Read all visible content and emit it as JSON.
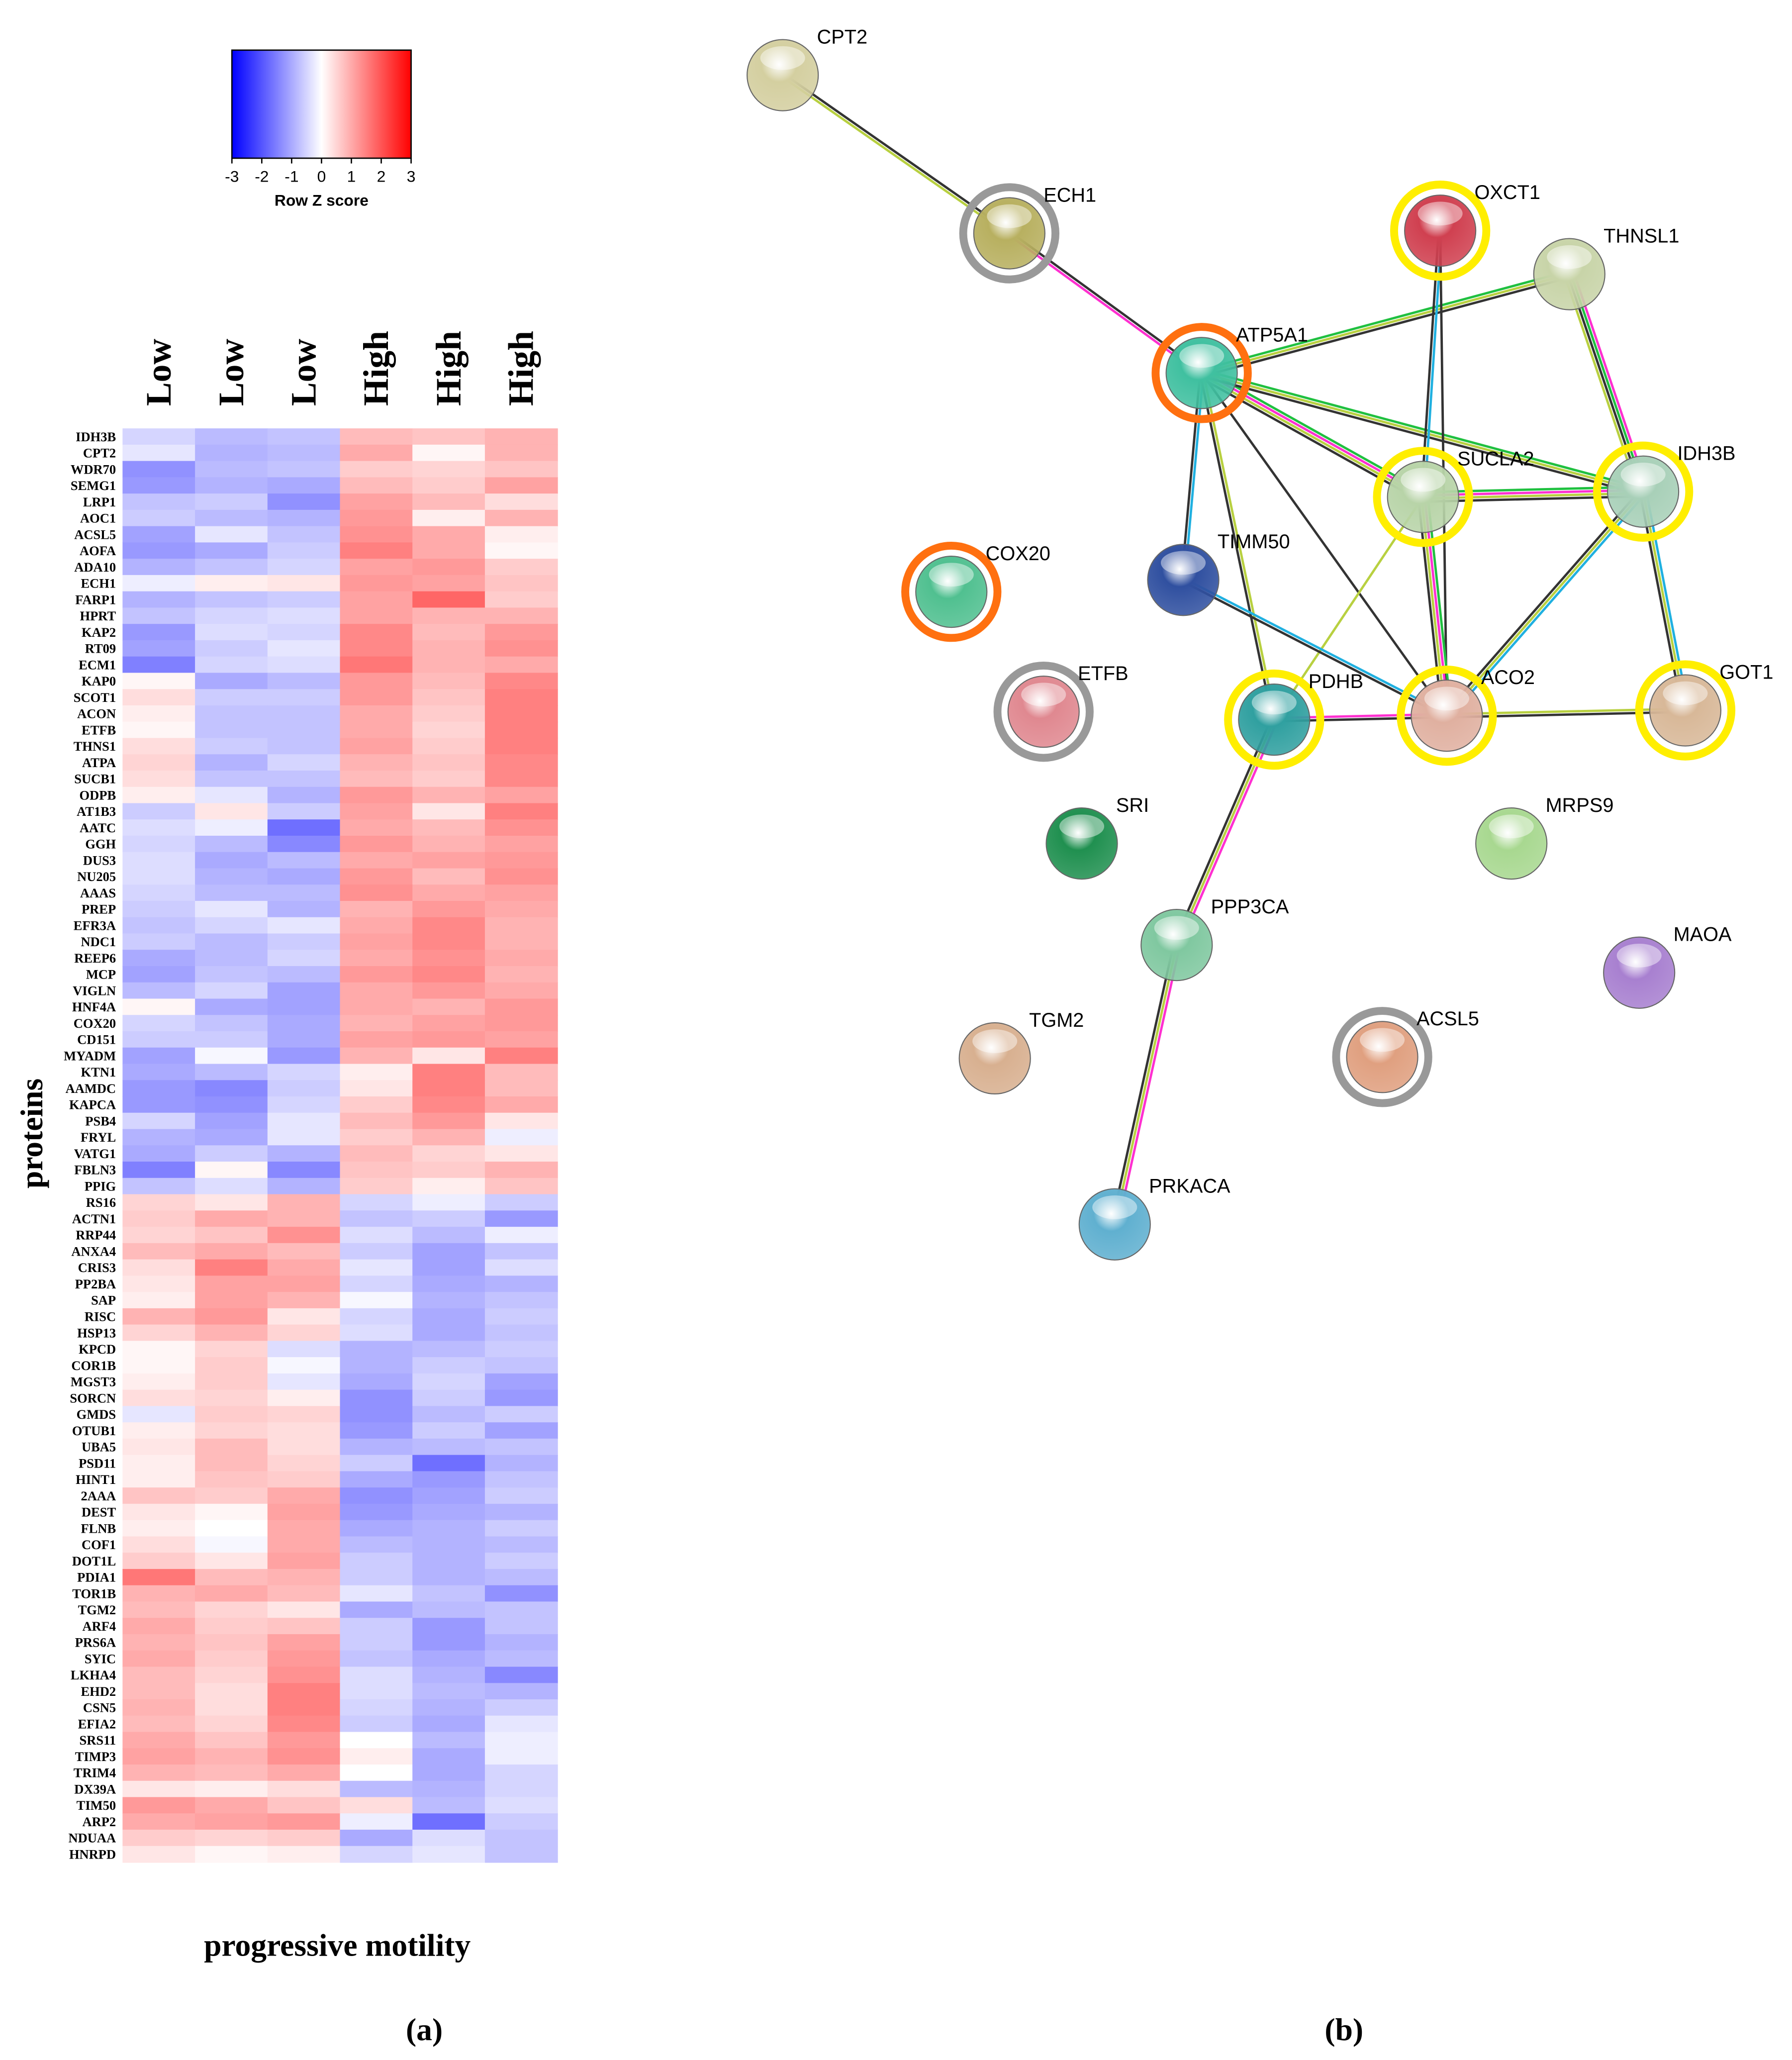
{
  "chart_data": {
    "type": "heatmap",
    "colorbar_label": "Row Z score",
    "xlabel": "progressive motility",
    "ylabel": "proteins",
    "zlim": [
      -3,
      3
    ],
    "zticks": [
      -3,
      -2,
      -1,
      0,
      1,
      2,
      3
    ],
    "colors": [
      "#0000ff",
      "#ffffff",
      "#ff0000"
    ],
    "columns": [
      "Low",
      "Low",
      "Low",
      "High",
      "High",
      "High"
    ],
    "rows": [
      "IDH3B",
      "CPT2",
      "WDR70",
      "SEMG1",
      "LRP1",
      "AOC1",
      "ACSL5",
      "AOFA",
      "ADA10",
      "ECH1",
      "FARP1",
      "HPRT",
      "KAP2",
      "RT09",
      "ECM1",
      "KAP0",
      "SCOT1",
      "ACON",
      "ETFB",
      "THNS1",
      "ATPA",
      "SUCB1",
      "ODPB",
      "AT1B3",
      "AATC",
      "GGH",
      "DUS3",
      "NU205",
      "AAAS",
      "PREP",
      "EFR3A",
      "NDC1",
      "REEP6",
      "MCP",
      "VIGLN",
      "HNF4A",
      "COX20",
      "CD151",
      "MYADM",
      "KTN1",
      "AAMDC",
      "KAPCA",
      "PSB4",
      "FRYL",
      "VATG1",
      "FBLN3",
      "PPIG",
      "RS16",
      "ACTN1",
      "RRP44",
      "ANXA4",
      "CRIS3",
      "PP2BA",
      "SAP",
      "RISC",
      "HSP13",
      "KPCD",
      "COR1B",
      "MGST3",
      "SORCN",
      "GMDS",
      "OTUB1",
      "UBA5",
      "PSD11",
      "HINT1",
      "2AAA",
      "DEST",
      "FLNB",
      "COF1",
      "DOT1L",
      "PDIA1",
      "TOR1B",
      "TGM2",
      "ARF4",
      "PRS6A",
      "SYIC",
      "LKHA4",
      "EHD2",
      "CSN5",
      "EFIA2",
      "SRS11",
      "TIMP3",
      "TRIM4",
      "DX39A",
      "TIM50",
      "ARP2",
      "NDUAA",
      "HNRPD"
    ],
    "values": [
      [
        -0.5,
        -0.8,
        -0.7,
        0.8,
        0.7,
        0.9
      ],
      [
        -0.3,
        -0.9,
        -0.8,
        1.0,
        0.1,
        0.9
      ],
      [
        -1.3,
        -0.8,
        -0.7,
        0.6,
        0.5,
        0.7
      ],
      [
        -1.2,
        -0.9,
        -1.0,
        0.8,
        0.6,
        1.1
      ],
      [
        -0.7,
        -0.6,
        -1.3,
        1.1,
        0.8,
        0.4
      ],
      [
        -0.6,
        -0.8,
        -0.9,
        1.2,
        0.2,
        0.9
      ],
      [
        -1.1,
        -0.3,
        -0.7,
        1.3,
        1.0,
        0.2
      ],
      [
        -1.2,
        -1.0,
        -0.6,
        1.5,
        1.0,
        0.1
      ],
      [
        -0.9,
        -0.7,
        -0.5,
        1.1,
        1.2,
        0.6
      ],
      [
        -0.2,
        0.2,
        0.3,
        1.2,
        1.1,
        0.7
      ],
      [
        -0.9,
        -0.7,
        -0.6,
        1.1,
        1.8,
        0.6
      ],
      [
        -0.7,
        -0.5,
        -0.4,
        1.1,
        0.9,
        0.9
      ],
      [
        -1.2,
        -0.4,
        -0.5,
        1.4,
        0.8,
        1.2
      ],
      [
        -1.1,
        -0.6,
        -0.3,
        1.4,
        0.9,
        1.3
      ],
      [
        -1.5,
        -0.5,
        -0.4,
        1.6,
        0.9,
        1.0
      ],
      [
        0.1,
        -1.0,
        -0.8,
        1.2,
        0.8,
        1.4
      ],
      [
        0.4,
        -0.6,
        -0.6,
        1.2,
        0.7,
        1.5
      ],
      [
        0.2,
        -0.7,
        -0.7,
        1.0,
        0.6,
        1.5
      ],
      [
        0.1,
        -0.7,
        -0.7,
        1.0,
        0.5,
        1.5
      ],
      [
        0.4,
        -0.6,
        -0.7,
        1.1,
        0.6,
        1.5
      ],
      [
        0.5,
        -0.9,
        -0.5,
        0.9,
        0.7,
        1.4
      ],
      [
        0.4,
        -0.7,
        -0.7,
        0.8,
        0.6,
        1.4
      ],
      [
        0.2,
        -0.3,
        -0.9,
        1.2,
        0.9,
        1.1
      ],
      [
        -0.6,
        0.3,
        -0.6,
        1.1,
        0.3,
        1.5
      ],
      [
        -0.4,
        -0.2,
        -1.7,
        1.0,
        0.8,
        1.3
      ],
      [
        -0.5,
        -0.8,
        -1.4,
        1.2,
        0.9,
        1.1
      ],
      [
        -0.4,
        -1.0,
        -0.8,
        1.0,
        1.1,
        1.2
      ],
      [
        -0.4,
        -0.9,
        -1.0,
        1.2,
        0.8,
        1.3
      ],
      [
        -0.5,
        -0.8,
        -0.8,
        1.3,
        1.0,
        1.1
      ],
      [
        -0.6,
        -0.3,
        -0.9,
        0.9,
        1.2,
        1.0
      ],
      [
        -0.7,
        -0.5,
        -0.3,
        1.0,
        1.4,
        0.9
      ],
      [
        -0.6,
        -0.8,
        -0.6,
        1.1,
        1.4,
        0.9
      ],
      [
        -1.0,
        -0.8,
        -0.5,
        1.0,
        1.3,
        1.0
      ],
      [
        -1.1,
        -0.7,
        -0.8,
        1.2,
        1.4,
        0.9
      ],
      [
        -0.8,
        -0.5,
        -1.1,
        1.0,
        1.2,
        1.0
      ],
      [
        0.1,
        -1.0,
        -1.1,
        1.0,
        0.9,
        1.2
      ],
      [
        -0.5,
        -0.7,
        -1.0,
        0.9,
        1.1,
        1.2
      ],
      [
        -0.6,
        -0.6,
        -1.0,
        1.1,
        1.2,
        1.1
      ],
      [
        -1.1,
        -0.1,
        -1.2,
        0.9,
        0.3,
        1.5
      ],
      [
        -1.0,
        -0.8,
        -0.5,
        0.2,
        1.5,
        0.8
      ],
      [
        -1.2,
        -1.4,
        -0.6,
        0.3,
        1.5,
        0.8
      ],
      [
        -1.2,
        -1.3,
        -0.5,
        0.6,
        1.4,
        1.0
      ],
      [
        -0.5,
        -1.1,
        -0.3,
        0.8,
        1.2,
        0.3
      ],
      [
        -0.9,
        -1.0,
        -0.3,
        0.6,
        0.9,
        -0.2
      ],
      [
        -1.0,
        -0.6,
        -0.9,
        0.8,
        0.5,
        0.3
      ],
      [
        -1.5,
        0.1,
        -1.4,
        0.7,
        0.6,
        0.9
      ],
      [
        -0.7,
        -0.4,
        -0.9,
        0.6,
        0.2,
        0.7
      ],
      [
        0.5,
        0.3,
        0.9,
        -0.5,
        -0.2,
        -0.6
      ],
      [
        0.6,
        1.0,
        0.9,
        -0.7,
        -0.6,
        -1.2
      ],
      [
        0.5,
        0.7,
        1.3,
        -0.4,
        -0.8,
        -0.2
      ],
      [
        0.8,
        1.0,
        0.8,
        -0.6,
        -1.1,
        -0.7
      ],
      [
        0.4,
        1.5,
        1.0,
        -0.3,
        -1.1,
        -0.4
      ],
      [
        0.3,
        1.1,
        1.1,
        -0.5,
        -1.0,
        -0.9
      ],
      [
        0.2,
        1.1,
        0.9,
        -0.1,
        -0.9,
        -0.7
      ],
      [
        0.9,
        1.2,
        0.3,
        -0.5,
        -1.0,
        -0.6
      ],
      [
        0.5,
        0.9,
        0.5,
        -0.4,
        -1.0,
        -0.7
      ],
      [
        0.1,
        0.5,
        -0.4,
        -0.9,
        -0.8,
        -0.6
      ],
      [
        0.1,
        0.6,
        -0.1,
        -0.9,
        -0.6,
        -0.7
      ],
      [
        0.2,
        0.6,
        -0.3,
        -1.0,
        -0.5,
        -1.1
      ],
      [
        0.4,
        0.5,
        0.2,
        -1.3,
        -0.6,
        -1.2
      ],
      [
        -0.3,
        0.6,
        0.5,
        -1.3,
        -0.8,
        -0.6
      ],
      [
        0.2,
        0.5,
        0.4,
        -1.2,
        -0.6,
        -1.1
      ],
      [
        0.3,
        0.8,
        0.4,
        -0.9,
        -0.8,
        -0.7
      ],
      [
        0.2,
        0.8,
        0.5,
        -0.6,
        -1.7,
        -0.9
      ],
      [
        0.2,
        0.7,
        0.6,
        -1.0,
        -1.2,
        -0.7
      ],
      [
        0.7,
        0.6,
        1.0,
        -1.3,
        -1.1,
        -0.6
      ],
      [
        0.3,
        0.1,
        1.1,
        -1.2,
        -1.0,
        -0.9
      ],
      [
        0.2,
        0.0,
        1.0,
        -1.0,
        -0.9,
        -0.6
      ],
      [
        0.4,
        -0.1,
        1.0,
        -0.8,
        -0.9,
        -0.8
      ],
      [
        0.6,
        0.3,
        1.1,
        -0.6,
        -0.9,
        -0.6
      ],
      [
        1.6,
        0.8,
        0.9,
        -0.6,
        -0.9,
        -0.8
      ],
      [
        0.9,
        1.0,
        0.8,
        -0.3,
        -0.7,
        -1.3
      ],
      [
        0.8,
        0.5,
        0.3,
        -1.0,
        -0.8,
        -0.7
      ],
      [
        1.0,
        0.6,
        0.7,
        -0.6,
        -1.2,
        -0.7
      ],
      [
        0.9,
        0.7,
        1.1,
        -0.6,
        -1.2,
        -0.9
      ],
      [
        1.0,
        0.6,
        1.2,
        -0.7,
        -1.0,
        -0.8
      ],
      [
        0.8,
        0.5,
        1.3,
        -0.4,
        -0.9,
        -1.4
      ],
      [
        0.8,
        0.4,
        1.5,
        -0.4,
        -0.8,
        -0.9
      ],
      [
        0.9,
        0.4,
        1.5,
        -0.5,
        -0.9,
        -0.6
      ],
      [
        0.8,
        0.5,
        1.4,
        -0.6,
        -1.0,
        -0.3
      ],
      [
        1.0,
        0.7,
        1.2,
        0.0,
        -0.8,
        -0.2
      ],
      [
        1.1,
        0.9,
        1.3,
        0.2,
        -1.0,
        -0.2
      ],
      [
        0.9,
        0.8,
        1.0,
        0.0,
        -1.0,
        -0.5
      ],
      [
        0.3,
        0.2,
        0.4,
        -0.8,
        -0.9,
        -0.5
      ],
      [
        1.2,
        1.0,
        0.7,
        0.4,
        -0.8,
        -0.4
      ],
      [
        1.0,
        1.1,
        1.2,
        -0.2,
        -1.7,
        -0.6
      ],
      [
        0.6,
        0.5,
        0.6,
        -1.0,
        -0.4,
        -0.7
      ],
      [
        0.3,
        0.1,
        0.2,
        -0.5,
        -0.3,
        -0.7
      ]
    ]
  },
  "network": {
    "nodes": [
      "CPT2",
      "ECH1",
      "OXCT1",
      "THNSL1",
      "ATP5A1",
      "SUCLA2",
      "IDH3B",
      "COX20",
      "TIMM50",
      "ETFB",
      "PDHB",
      "ACO2",
      "GOT1",
      "SRI",
      "MRPS9",
      "PPP3CA",
      "MAOA",
      "TGM2",
      "ACSL5",
      "PRKACA"
    ]
  },
  "panel_labels": [
    "(a)",
    "(b)"
  ]
}
